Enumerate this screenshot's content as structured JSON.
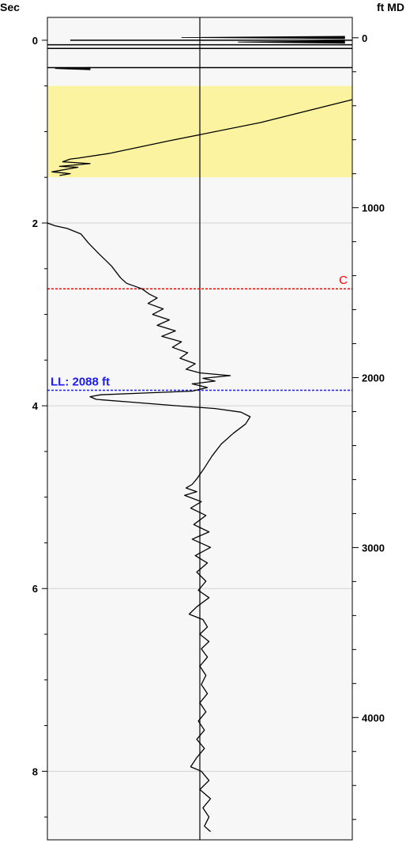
{
  "chart_data": {
    "type": "line",
    "left_axis": {
      "title": "Sec",
      "range": [
        -0.25,
        8.75
      ],
      "ticks": [
        0,
        2,
        4,
        6,
        8
      ],
      "minor_step": 0.5,
      "tick_labels": [
        "0",
        "2",
        "4",
        "6",
        "8"
      ]
    },
    "right_axis": {
      "title": "ft MD",
      "range": [
        -120,
        4720
      ],
      "ticks": [
        0,
        1000,
        2000,
        3000,
        4000
      ],
      "minor_step": 200,
      "tick_labels": [
        "0",
        "1000",
        "2000",
        "3000",
        "4000"
      ]
    },
    "grid_lines_sec": [
      2,
      4,
      6,
      8
    ],
    "highlight_band_sec": [
      0.5,
      1.5
    ],
    "highlight_color": "#fbf3a0",
    "plot_background": "#f7f7f7",
    "center_line_value": 0,
    "markers": [
      {
        "label": "C",
        "sec": 2.72,
        "color": "#ff0000",
        "side": "right"
      },
      {
        "label": "LL: 2088 ft",
        "sec": 3.83,
        "color": "#1a1aff",
        "side": "left"
      }
    ],
    "top_traces": [
      {
        "sec": 0.0,
        "x": [
          -0.85,
          1.0
        ]
      },
      {
        "sec": 0.05,
        "x": [
          -1.0,
          1.0
        ]
      },
      {
        "sec": 0.09,
        "x": [
          -1.0,
          1.0
        ]
      },
      {
        "sec": 0.3,
        "x": [
          -1.0,
          1.0
        ]
      }
    ],
    "top_spikes": [
      {
        "sec": -0.03,
        "x": [
          -0.12,
          0.95
        ]
      },
      {
        "sec": 0.02,
        "x": [
          0.25,
          0.95
        ]
      },
      {
        "sec": 0.31,
        "x": [
          -0.95,
          -0.72
        ]
      }
    ],
    "series": [
      {
        "name": "",
        "segments": [
          [
            [
              1.0,
              0.65
            ],
            [
              0.4,
              0.9
            ],
            [
              -0.2,
              1.1
            ],
            [
              -0.6,
              1.24
            ],
            [
              -0.8,
              1.29
            ],
            [
              -0.85,
              1.3
            ],
            [
              -0.9,
              1.33
            ],
            [
              -0.72,
              1.35
            ],
            [
              -0.92,
              1.38
            ],
            [
              -0.8,
              1.39
            ],
            [
              -0.97,
              1.44
            ],
            [
              -0.85,
              1.46
            ],
            [
              -0.92,
              1.48
            ]
          ],
          [
            [
              -1.0,
              2.0
            ],
            [
              -0.95,
              2.03
            ],
            [
              -0.87,
              2.06
            ],
            [
              -0.78,
              2.12
            ],
            [
              -0.73,
              2.22
            ],
            [
              -0.66,
              2.34
            ],
            [
              -0.58,
              2.47
            ],
            [
              -0.52,
              2.6
            ],
            [
              -0.48,
              2.66
            ],
            [
              -0.38,
              2.72
            ],
            [
              -0.33,
              2.78
            ],
            [
              -0.28,
              2.82
            ],
            [
              -0.34,
              2.88
            ],
            [
              -0.24,
              2.94
            ],
            [
              -0.31,
              3.0
            ],
            [
              -0.2,
              3.06
            ],
            [
              -0.28,
              3.12
            ],
            [
              -0.16,
              3.18
            ],
            [
              -0.25,
              3.24
            ],
            [
              -0.12,
              3.3
            ],
            [
              -0.18,
              3.36
            ],
            [
              -0.08,
              3.42
            ],
            [
              -0.13,
              3.48
            ],
            [
              -0.03,
              3.54
            ],
            [
              -0.09,
              3.6
            ],
            [
              0.0,
              3.64
            ],
            [
              0.2,
              3.67
            ],
            [
              0.02,
              3.7
            ],
            [
              0.1,
              3.73
            ],
            [
              -0.05,
              3.76
            ],
            [
              0.05,
              3.8
            ],
            [
              -0.05,
              3.84
            ],
            [
              -0.35,
              3.86
            ],
            [
              -0.65,
              3.88
            ],
            [
              -0.72,
              3.9
            ],
            [
              -0.68,
              3.93
            ],
            [
              -0.45,
              3.96
            ],
            [
              -0.15,
              4.0
            ],
            [
              0.1,
              4.03
            ],
            [
              0.27,
              4.07
            ],
            [
              0.33,
              4.12
            ],
            [
              0.3,
              4.2
            ],
            [
              0.22,
              4.3
            ],
            [
              0.14,
              4.42
            ],
            [
              0.08,
              4.55
            ],
            [
              0.03,
              4.68
            ],
            [
              -0.02,
              4.8
            ],
            [
              -0.05,
              4.86
            ],
            [
              -0.09,
              4.9
            ],
            [
              -0.02,
              4.94
            ],
            [
              -0.1,
              4.98
            ],
            [
              0.01,
              5.05
            ],
            [
              -0.06,
              5.12
            ],
            [
              0.04,
              5.2
            ],
            [
              -0.04,
              5.3
            ],
            [
              0.06,
              5.38
            ],
            [
              -0.05,
              5.46
            ],
            [
              0.07,
              5.55
            ],
            [
              -0.03,
              5.64
            ],
            [
              0.05,
              5.72
            ],
            [
              -0.02,
              5.82
            ],
            [
              0.04,
              5.92
            ],
            [
              -0.01,
              6.02
            ],
            [
              0.06,
              6.1
            ],
            [
              -0.02,
              6.2
            ],
            [
              -0.07,
              6.28
            ],
            [
              0.02,
              6.34
            ],
            [
              0.05,
              6.42
            ],
            [
              0.0,
              6.5
            ],
            [
              0.06,
              6.58
            ],
            [
              0.01,
              6.66
            ],
            [
              0.05,
              6.75
            ],
            [
              0.0,
              6.85
            ],
            [
              0.04,
              6.95
            ],
            [
              0.01,
              7.05
            ],
            [
              0.05,
              7.15
            ],
            [
              0.0,
              7.25
            ],
            [
              0.04,
              7.35
            ],
            [
              -0.01,
              7.45
            ],
            [
              0.03,
              7.55
            ],
            [
              -0.02,
              7.65
            ],
            [
              0.03,
              7.75
            ],
            [
              -0.02,
              7.85
            ],
            [
              -0.06,
              7.95
            ],
            [
              0.01,
              8.0
            ],
            [
              0.06,
              8.1
            ],
            [
              0.0,
              8.2
            ],
            [
              0.07,
              8.3
            ],
            [
              0.02,
              8.4
            ],
            [
              0.06,
              8.5
            ],
            [
              0.03,
              8.6
            ],
            [
              0.07,
              8.66
            ]
          ]
        ]
      }
    ]
  }
}
